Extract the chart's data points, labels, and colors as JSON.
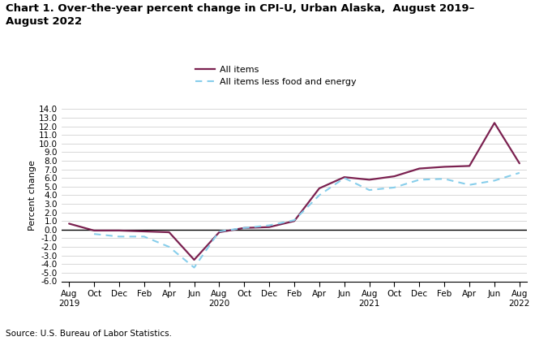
{
  "title": "Chart 1. Over-the-year percent change in CPI-U, Urban Alaska,  August 2019–\nAugust 2022",
  "ylabel": "Percent change",
  "source": "Source: U.S. Bureau of Labor Statistics.",
  "ylim": [
    -6.0,
    14.0
  ],
  "yticks": [
    -6.0,
    -5.0,
    -4.0,
    -3.0,
    -2.0,
    -1.0,
    0.0,
    1.0,
    2.0,
    3.0,
    4.0,
    5.0,
    6.0,
    7.0,
    8.0,
    9.0,
    10.0,
    11.0,
    12.0,
    13.0,
    14.0
  ],
  "tick_labels": [
    "Aug\n2019",
    "Oct",
    "Dec",
    "Feb",
    "Apr",
    "Jun",
    "Aug\n2020",
    "Oct",
    "Dec",
    "Feb",
    "Apr",
    "Jun",
    "Aug\n2021",
    "Oct",
    "Dec",
    "Feb",
    "Apr",
    "Jun",
    "Aug\n2022"
  ],
  "all_items": [
    0.7,
    -0.1,
    -0.1,
    -0.2,
    -0.3,
    -3.5,
    -0.3,
    0.2,
    0.3,
    1.0,
    4.8,
    6.1,
    5.8,
    6.2,
    7.1,
    7.3,
    7.4,
    12.4,
    7.7
  ],
  "all_items_less": [
    null,
    -0.5,
    -0.8,
    -0.8,
    -2.0,
    -4.4,
    -0.2,
    0.2,
    0.5,
    1.1,
    4.0,
    6.0,
    4.6,
    4.9,
    5.8,
    5.9,
    5.2,
    5.7,
    6.6
  ],
  "all_items_color": "#7b2150",
  "all_items_less_color": "#87ceeb",
  "legend_all_items": "All items",
  "legend_all_items_less": "All items less food and energy",
  "background_color": "#ffffff"
}
